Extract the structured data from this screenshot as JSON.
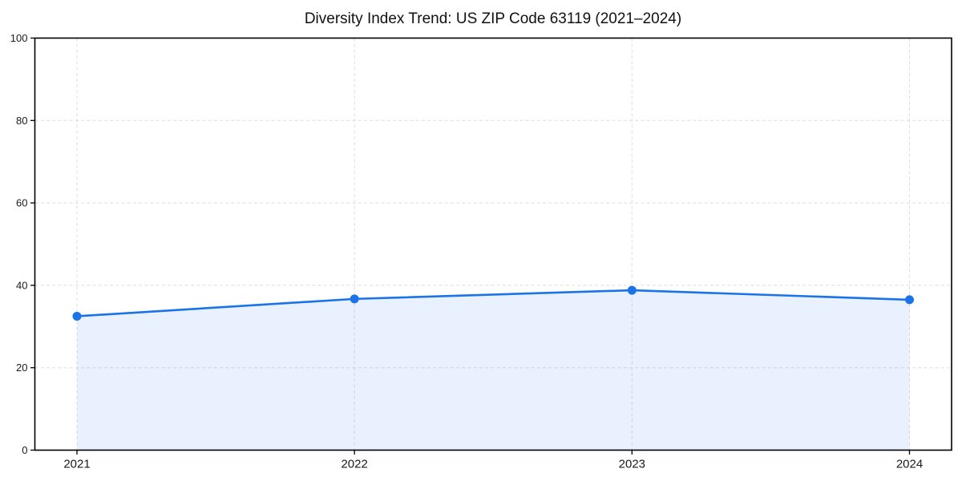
{
  "chart_data": {
    "type": "area",
    "title": "Diversity Index Trend: US ZIP Code 63119 (2021–2024)",
    "xlabel": "",
    "ylabel": "",
    "categories": [
      "2021",
      "2022",
      "2023",
      "2024"
    ],
    "series": [
      {
        "name": "Diversity Index",
        "values": [
          32.5,
          36.7,
          38.8,
          36.5
        ]
      }
    ],
    "ylim": [
      0,
      100
    ],
    "yticks": [
      0,
      20,
      40,
      60,
      80,
      100
    ],
    "grid": true,
    "grid_style": "dashed",
    "legend": "none",
    "marker": "circle",
    "colors": {
      "line": "#1a73e8",
      "marker": "#1a73e8",
      "fill": "rgba(26,115,232,0.10)",
      "grid": "#dedede",
      "axis": "#000000",
      "tick_text": "#1a1a1a",
      "background": "#ffffff"
    }
  }
}
